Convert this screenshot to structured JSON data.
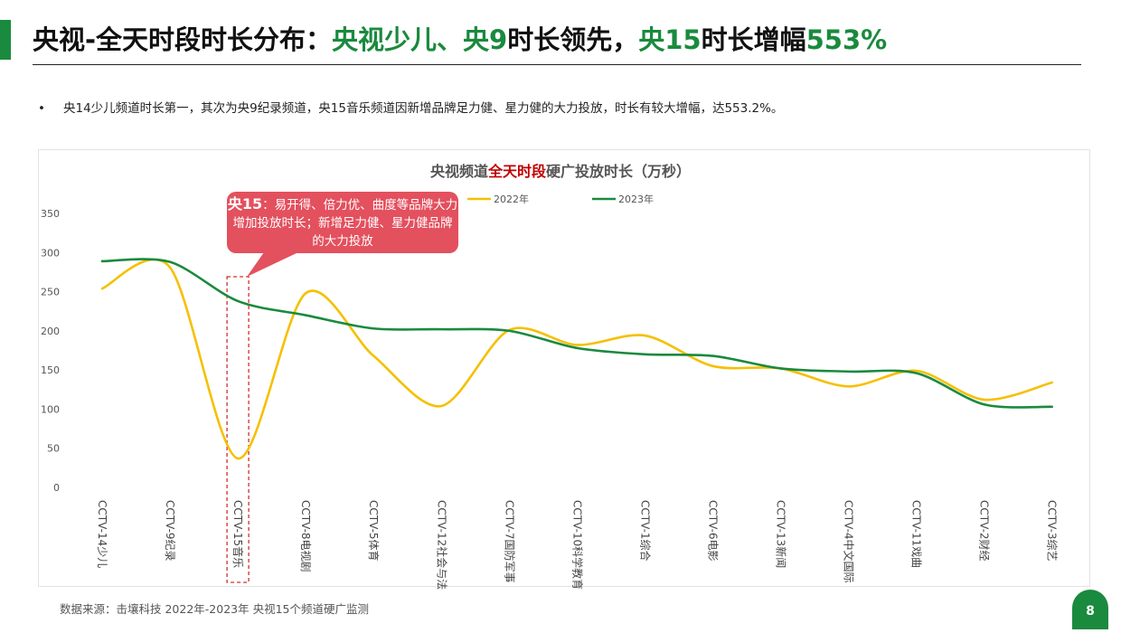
{
  "header": {
    "title_prefix": "央视-全天时段时长分布：",
    "title_hl1": "央视少儿、央9",
    "title_mid": "时长领先，",
    "title_hl2": "央15",
    "title_mid2": "时长增幅",
    "title_hl3": "553%"
  },
  "bullet": {
    "marker": "•",
    "text": "央14少儿频道时长第一，其次为央9纪录频道，央15音乐频道因新增品牌足力健、星力健的大力投放，时长有较大增幅，达553.2%。"
  },
  "callout": {
    "bold": "央15",
    "text": "：易开得、倍力优、曲度等品牌大力增加投放时长；新增足力健、星力健品牌的大力投放"
  },
  "source": "数据来源：击壤科技  2022年-2023年 央视15个频道硬广监测",
  "page_number": "8",
  "colors": {
    "accent": "#1a8a3e",
    "series_2022": "#f5c000",
    "series_2023": "#1a8a3e",
    "callout": "#e3505e",
    "highlight_box": "#d32f2f"
  },
  "chart_data": {
    "type": "line",
    "title_prefix": "央视频道",
    "title_red": "全天时段",
    "title_suffix": "硬广投放时长（万秒）",
    "categories": [
      "CCTV-14少儿",
      "CCTV-9纪录",
      "CCTV-15音乐",
      "CCTV-8电视剧",
      "CCTV-5体育",
      "CCTV-12社会与法",
      "CCTV-7国防军事",
      "CCTV-10科学教育",
      "CCTV-1综合",
      "CCTV-6电影",
      "CCTV-13新闻",
      "CCTV-4中文国际",
      "CCTV-11戏曲",
      "CCTV-2财经",
      "CCTV-3综艺"
    ],
    "series": [
      {
        "name": "2022年",
        "values": [
          254,
          281,
          37,
          248,
          168,
          104,
          201,
          182,
          194,
          155,
          152,
          129,
          149,
          112,
          134
        ]
      },
      {
        "name": "2023年",
        "values": [
          289,
          288,
          238,
          220,
          203,
          202,
          200,
          178,
          170,
          168,
          152,
          148,
          146,
          106,
          103
        ]
      }
    ],
    "yticks": [
      0,
      50,
      100,
      150,
      200,
      250,
      300,
      350
    ],
    "ylim": [
      0,
      350
    ],
    "highlight_category": "CCTV-15音乐",
    "legend_position": "top-center"
  }
}
